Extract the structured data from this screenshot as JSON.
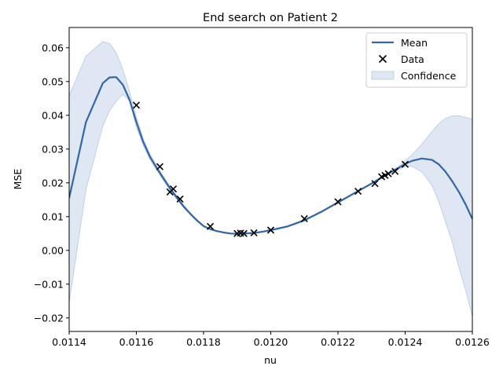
{
  "chart_data": {
    "type": "line",
    "title": "End search on Patient 2",
    "xlabel": "nu",
    "ylabel": "MSE",
    "xlim": [
      0.0114,
      0.0126
    ],
    "ylim": [
      -0.024,
      0.066
    ],
    "x_ticks": [
      0.0114,
      0.0116,
      0.0118,
      0.012,
      0.0122,
      0.0124,
      0.0126
    ],
    "x_tick_labels": [
      "0.0114",
      "0.0116",
      "0.0118",
      "0.0120",
      "0.0122",
      "0.0124",
      "0.0126"
    ],
    "y_ticks": [
      -0.02,
      -0.01,
      0.0,
      0.01,
      0.02,
      0.03,
      0.04,
      0.05,
      0.06
    ],
    "y_tick_labels": [
      "−0.02",
      "−0.01",
      "0.00",
      "0.01",
      "0.02",
      "0.03",
      "0.04",
      "0.05",
      "0.06"
    ],
    "grid": false,
    "legend_position": "top-right",
    "legend": [
      "Mean",
      "Data",
      "Confidence"
    ],
    "colors": {
      "mean": "#3465a4",
      "confidence": "#dfe7f4",
      "confidence_edge": "#b9c8e2",
      "data": "#000000"
    },
    "series": [
      {
        "name": "Mean",
        "type": "line",
        "x": [
          0.0114,
          0.01145,
          0.0115,
          0.01152,
          0.01154,
          0.01156,
          0.01158,
          0.0116,
          0.01162,
          0.01164,
          0.01166,
          0.01168,
          0.0117,
          0.01172,
          0.01174,
          0.01176,
          0.01178,
          0.0118,
          0.01182,
          0.01184,
          0.01186,
          0.01188,
          0.0119,
          0.01192,
          0.01194,
          0.01196,
          0.01198,
          0.012,
          0.01205,
          0.0121,
          0.01215,
          0.0122,
          0.01225,
          0.0123,
          0.01234,
          0.01238,
          0.0124,
          0.01242,
          0.01245,
          0.01248,
          0.0125,
          0.01252,
          0.01254,
          0.01256,
          0.01258,
          0.0126
        ],
        "y": [
          0.0155,
          0.038,
          0.0495,
          0.0512,
          0.0513,
          0.049,
          0.0445,
          0.038,
          0.0322,
          0.0278,
          0.0245,
          0.0214,
          0.0184,
          0.0157,
          0.0131,
          0.0109,
          0.0089,
          0.0072,
          0.0063,
          0.0057,
          0.0053,
          0.005,
          0.0049,
          0.005,
          0.0051,
          0.0053,
          0.0056,
          0.006,
          0.0071,
          0.0089,
          0.0114,
          0.0142,
          0.017,
          0.0198,
          0.0222,
          0.0244,
          0.0256,
          0.0265,
          0.0272,
          0.0268,
          0.0255,
          0.0233,
          0.0205,
          0.0173,
          0.0136,
          0.0093
        ]
      },
      {
        "name": "Confidence",
        "type": "area",
        "x": [
          0.0114,
          0.01145,
          0.0115,
          0.01152,
          0.01154,
          0.01156,
          0.01158,
          0.0116,
          0.01162,
          0.01164,
          0.01166,
          0.01168,
          0.0117,
          0.01172,
          0.01174,
          0.01176,
          0.01178,
          0.0118,
          0.01182,
          0.01184,
          0.01186,
          0.01188,
          0.0119,
          0.01192,
          0.01194,
          0.01196,
          0.01198,
          0.012,
          0.01205,
          0.0121,
          0.01215,
          0.0122,
          0.01225,
          0.0123,
          0.01234,
          0.01238,
          0.0124,
          0.01242,
          0.01245,
          0.01248,
          0.0125,
          0.01252,
          0.01254,
          0.01256,
          0.01258,
          0.0126
        ],
        "upper": [
          0.0458,
          0.0575,
          0.0618,
          0.0613,
          0.0585,
          0.0535,
          0.047,
          0.0395,
          0.0332,
          0.0286,
          0.0252,
          0.022,
          0.019,
          0.0162,
          0.0135,
          0.0112,
          0.0092,
          0.0074,
          0.0064,
          0.0058,
          0.0054,
          0.0051,
          0.005,
          0.005,
          0.0052,
          0.0054,
          0.0057,
          0.0061,
          0.0073,
          0.0091,
          0.0116,
          0.0144,
          0.0172,
          0.02,
          0.0224,
          0.0248,
          0.0265,
          0.0283,
          0.0315,
          0.0352,
          0.0375,
          0.0391,
          0.0398,
          0.0399,
          0.0394,
          0.0388
        ],
        "lower": [
          -0.0155,
          0.018,
          0.0368,
          0.0413,
          0.0442,
          0.0462,
          0.0442,
          0.0365,
          0.0312,
          0.027,
          0.0238,
          0.0208,
          0.0178,
          0.0152,
          0.0127,
          0.0106,
          0.0086,
          0.007,
          0.0062,
          0.0056,
          0.0052,
          0.0049,
          0.0048,
          0.0049,
          0.005,
          0.0052,
          0.0055,
          0.0059,
          0.0069,
          0.0087,
          0.0112,
          0.014,
          0.0168,
          0.0196,
          0.022,
          0.024,
          0.0248,
          0.0249,
          0.0232,
          0.0192,
          0.0145,
          0.0085,
          0.0025,
          -0.005,
          -0.0118,
          -0.0195
        ]
      },
      {
        "name": "Data",
        "type": "scatter",
        "x": [
          0.0116,
          0.01167,
          0.0117,
          0.01171,
          0.01173,
          0.01182,
          0.0119,
          0.01191,
          0.01192,
          0.01195,
          0.012,
          0.0121,
          0.0122,
          0.01226,
          0.01231,
          0.01233,
          0.01234,
          0.01235,
          0.01237,
          0.0124
        ],
        "y": [
          0.043,
          0.0248,
          0.0173,
          0.0182,
          0.0152,
          0.0071,
          0.005,
          0.0051,
          0.005,
          0.0052,
          0.006,
          0.0094,
          0.0144,
          0.0175,
          0.0198,
          0.0218,
          0.0222,
          0.0227,
          0.0234,
          0.0255
        ]
      }
    ]
  }
}
